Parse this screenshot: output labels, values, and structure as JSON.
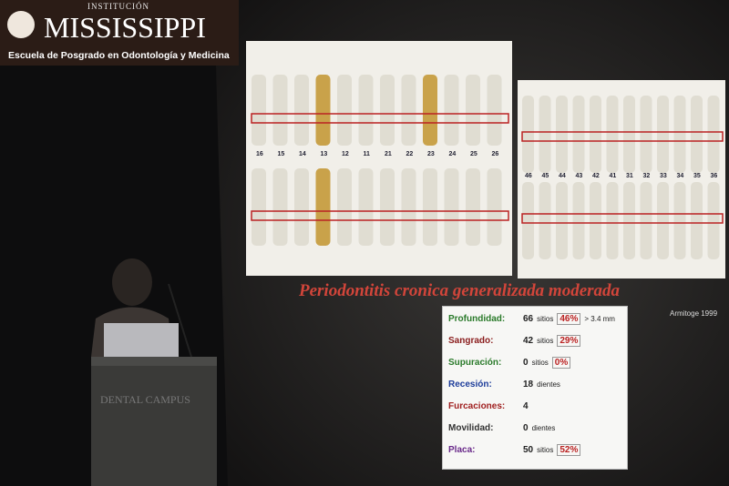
{
  "logo": {
    "kicker": "INSTITUCIÓN",
    "name": "MISSISSIPPI",
    "subtitle": "Escuela de Posgrado en Odontología y Medicina"
  },
  "slide": {
    "upper_teeth": [
      "16",
      "15",
      "14",
      "13",
      "12",
      "11",
      "21",
      "22",
      "23",
      "24",
      "25",
      "26"
    ],
    "lower_teeth": [
      "46",
      "45",
      "44",
      "43",
      "42",
      "41",
      "31",
      "32",
      "33",
      "34",
      "35",
      "36"
    ],
    "title": "Periodontitis cronica generalizada moderada",
    "citation": "Armitoge 1999",
    "table": {
      "rows": [
        {
          "label": "Profundidad:",
          "value": "66",
          "unit": "sitios",
          "percent": "46%",
          "extra": "> 3.4 mm"
        },
        {
          "label": "Sangrado:",
          "value": "42",
          "unit": "sitios",
          "percent": "29%"
        },
        {
          "label": "Supuración:",
          "value": "0",
          "unit": "sitios",
          "percent": "0%"
        },
        {
          "label": "Recesión:",
          "value": "18",
          "unit": "dientes"
        },
        {
          "label": "Furcaciones:",
          "value": "4"
        },
        {
          "label": "Movilidad:",
          "value": "0",
          "unit": "dientes"
        },
        {
          "label": "Placa:",
          "value": "50",
          "unit": "sitios",
          "percent": "52%"
        }
      ]
    }
  },
  "podium": {
    "brand": "DENTAL CAMPUS"
  }
}
